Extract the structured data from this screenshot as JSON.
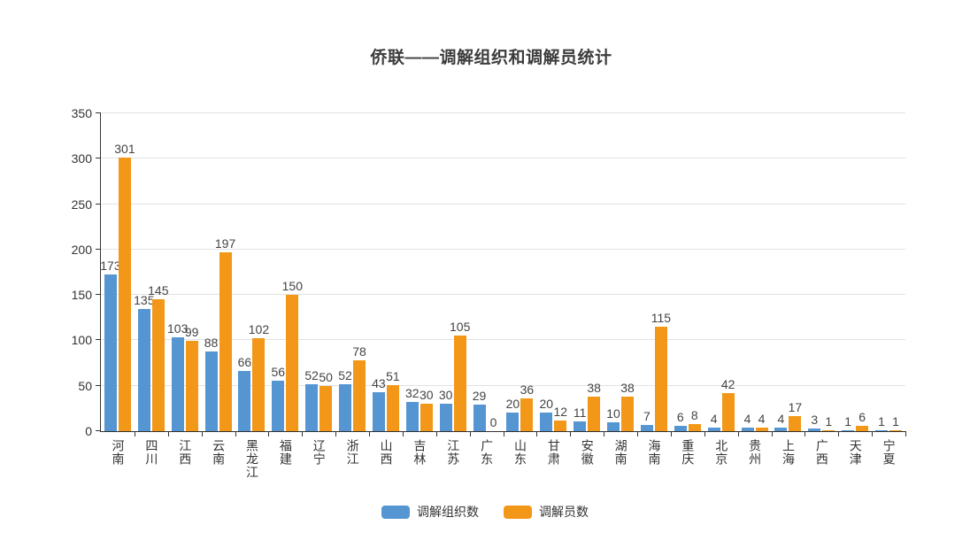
{
  "chart_data": {
    "type": "bar",
    "title": "侨联——调解组织和调解员统计",
    "categories": [
      "河南",
      "四川",
      "江西",
      "云南",
      "黑龙江",
      "福建",
      "辽宁",
      "浙江",
      "山西",
      "吉林",
      "江苏",
      "广东",
      "山东",
      "甘肃",
      "安徽",
      "湖南",
      "海南",
      "重庆",
      "北京",
      "贵州",
      "上海",
      "广西",
      "天津",
      "宁夏"
    ],
    "series": [
      {
        "name": "调解组织数",
        "color": "#5596D2",
        "values": [
          173,
          135,
          103,
          88,
          66,
          56,
          52,
          52,
          43,
          32,
          30,
          29,
          20,
          20,
          11,
          10,
          7,
          6,
          4,
          4,
          4,
          3,
          1,
          1
        ]
      },
      {
        "name": "调解员数",
        "color": "#F29717",
        "values": [
          301,
          145,
          99,
          197,
          102,
          150,
          50,
          78,
          51,
          30,
          105,
          0,
          36,
          12,
          38,
          38,
          115,
          8,
          42,
          4,
          17,
          1,
          6,
          1
        ]
      }
    ],
    "ylim": [
      0,
      350
    ],
    "ytick_step": 50,
    "grid": true,
    "legend_position": "bottom",
    "xlabel": "",
    "ylabel": "",
    "value_labels": true
  }
}
